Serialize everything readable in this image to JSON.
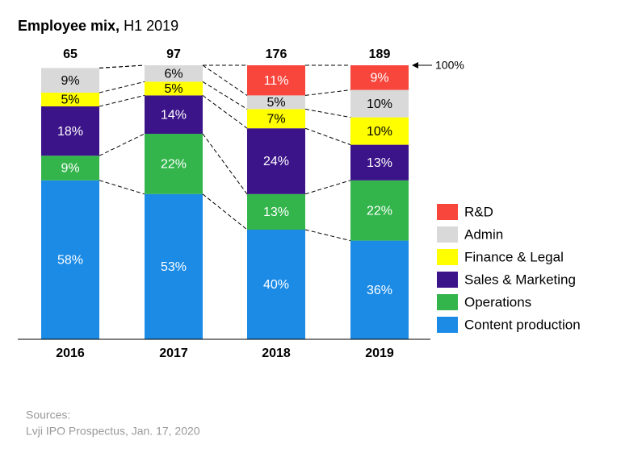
{
  "chart_data": {
    "type": "stacked_bar_100",
    "title": "Employee mix,",
    "subtitle": "H1 2019",
    "categories": [
      "2016",
      "2017",
      "2018",
      "2019"
    ],
    "totals": [
      65,
      97,
      176,
      189
    ],
    "annotation": "100%",
    "ylim": [
      0,
      100
    ],
    "series": [
      {
        "name": "Content production",
        "color": "#1b8be6",
        "values": [
          58,
          53,
          40,
          36
        ],
        "value_labels": [
          "58%",
          "53%",
          "40%",
          "36%"
        ]
      },
      {
        "name": "Operations",
        "color": "#33b54c",
        "values": [
          9,
          22,
          13,
          22
        ],
        "value_labels": [
          "9%",
          "22%",
          "13%",
          "22%"
        ]
      },
      {
        "name": "Sales & Marketing",
        "color": "#3c1489",
        "values": [
          18,
          14,
          24,
          13
        ],
        "value_labels": [
          "18%",
          "14%",
          "24%",
          "13%"
        ]
      },
      {
        "name": "Finance & Legal",
        "color": "#ffff00",
        "values": [
          5,
          5,
          7,
          10
        ],
        "value_labels": [
          "5%",
          "5%",
          "7%",
          "10%"
        ]
      },
      {
        "name": "Admin",
        "color": "#d9d9d9",
        "values": [
          9,
          6,
          5,
          10
        ],
        "value_labels": [
          "9%",
          "6%",
          "5%",
          "10%"
        ]
      },
      {
        "name": "R&D",
        "color": "#f8463c",
        "values": [
          null,
          null,
          11,
          9
        ],
        "value_labels": [
          null,
          null,
          "11%",
          "9%"
        ]
      }
    ],
    "legend": "right",
    "sources": [
      "Sources:",
      "Lvji IPO Prospectus, Jan. 17, 2020"
    ]
  }
}
